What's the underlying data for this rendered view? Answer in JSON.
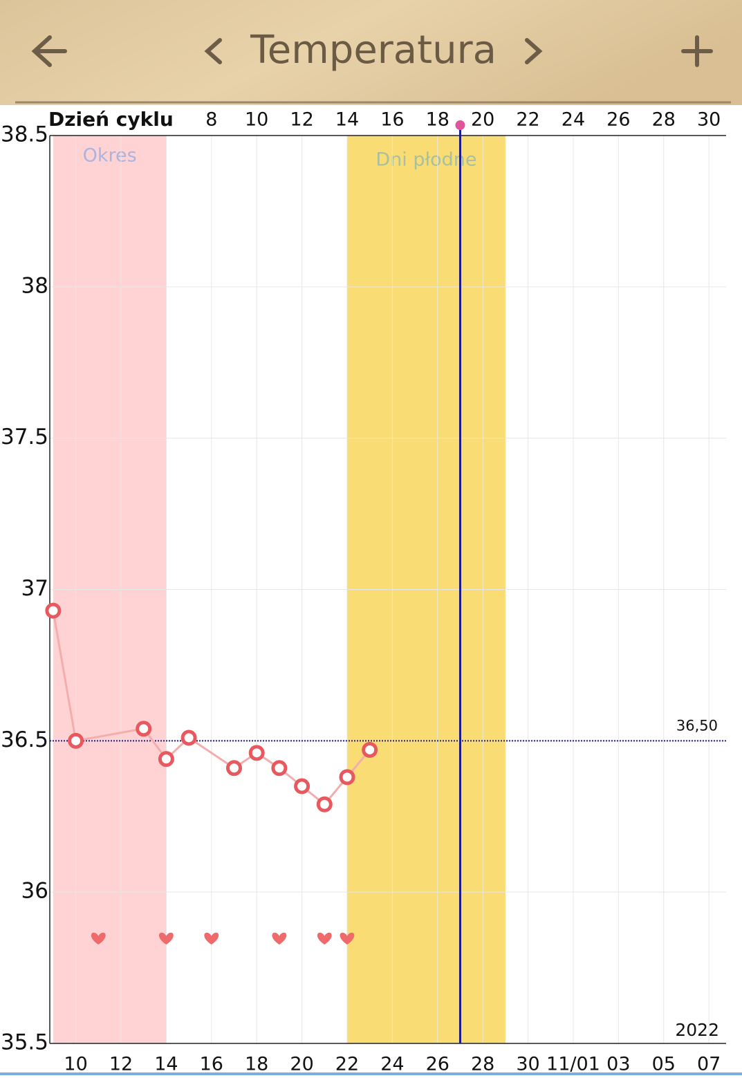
{
  "header": {
    "title": "Temperatura"
  },
  "chart_data": {
    "type": "line",
    "x_label": "Dzień cyklu",
    "year_label": "2022",
    "x": [
      1,
      2,
      5,
      6,
      7,
      9,
      10,
      11,
      12,
      13,
      14,
      15
    ],
    "values": [
      36.93,
      36.5,
      36.54,
      36.44,
      36.51,
      36.41,
      36.46,
      36.41,
      36.35,
      36.29,
      36.38,
      36.47
    ],
    "color": "#e8585f",
    "line_color": "#f4adad",
    "xlim": [
      0.85,
      30.76
    ],
    "xticks": [
      8,
      10,
      12,
      14,
      16,
      18,
      20,
      22,
      24,
      26,
      28,
      30
    ],
    "date_ticks": [
      {
        "value": 2,
        "label": "10"
      },
      {
        "value": 4,
        "label": "12"
      },
      {
        "value": 6,
        "label": "14"
      },
      {
        "value": 8,
        "label": "16"
      },
      {
        "value": 10,
        "label": "18"
      },
      {
        "value": 12,
        "label": "20"
      },
      {
        "value": 14,
        "label": "22"
      },
      {
        "value": 16,
        "label": "24"
      },
      {
        "value": 18,
        "label": "26"
      },
      {
        "value": 20,
        "label": "28"
      },
      {
        "value": 22,
        "label": "30"
      },
      {
        "value": 24,
        "label": "11/01"
      },
      {
        "value": 26,
        "label": "03"
      },
      {
        "value": 28,
        "label": "05"
      },
      {
        "value": 30,
        "label": "07"
      }
    ],
    "ylim": [
      35.5,
      38.5
    ],
    "yticks": [
      35.5,
      36,
      36.5,
      37,
      37.5,
      38,
      38.5
    ],
    "grid": true,
    "bands": [
      {
        "label": "Okres",
        "range": [
          1,
          6
        ],
        "color": "#ffd3d3",
        "label_color": "#a9b5e0"
      },
      {
        "label": "Dni płodne",
        "range": [
          14,
          21
        ],
        "color": "#f9dc74",
        "label_color": "#a9bf9e"
      }
    ],
    "today": 19,
    "reference": {
      "value": 36.5,
      "label": "36,50"
    },
    "hearts": [
      3,
      6,
      8,
      11,
      13,
      14
    ]
  }
}
